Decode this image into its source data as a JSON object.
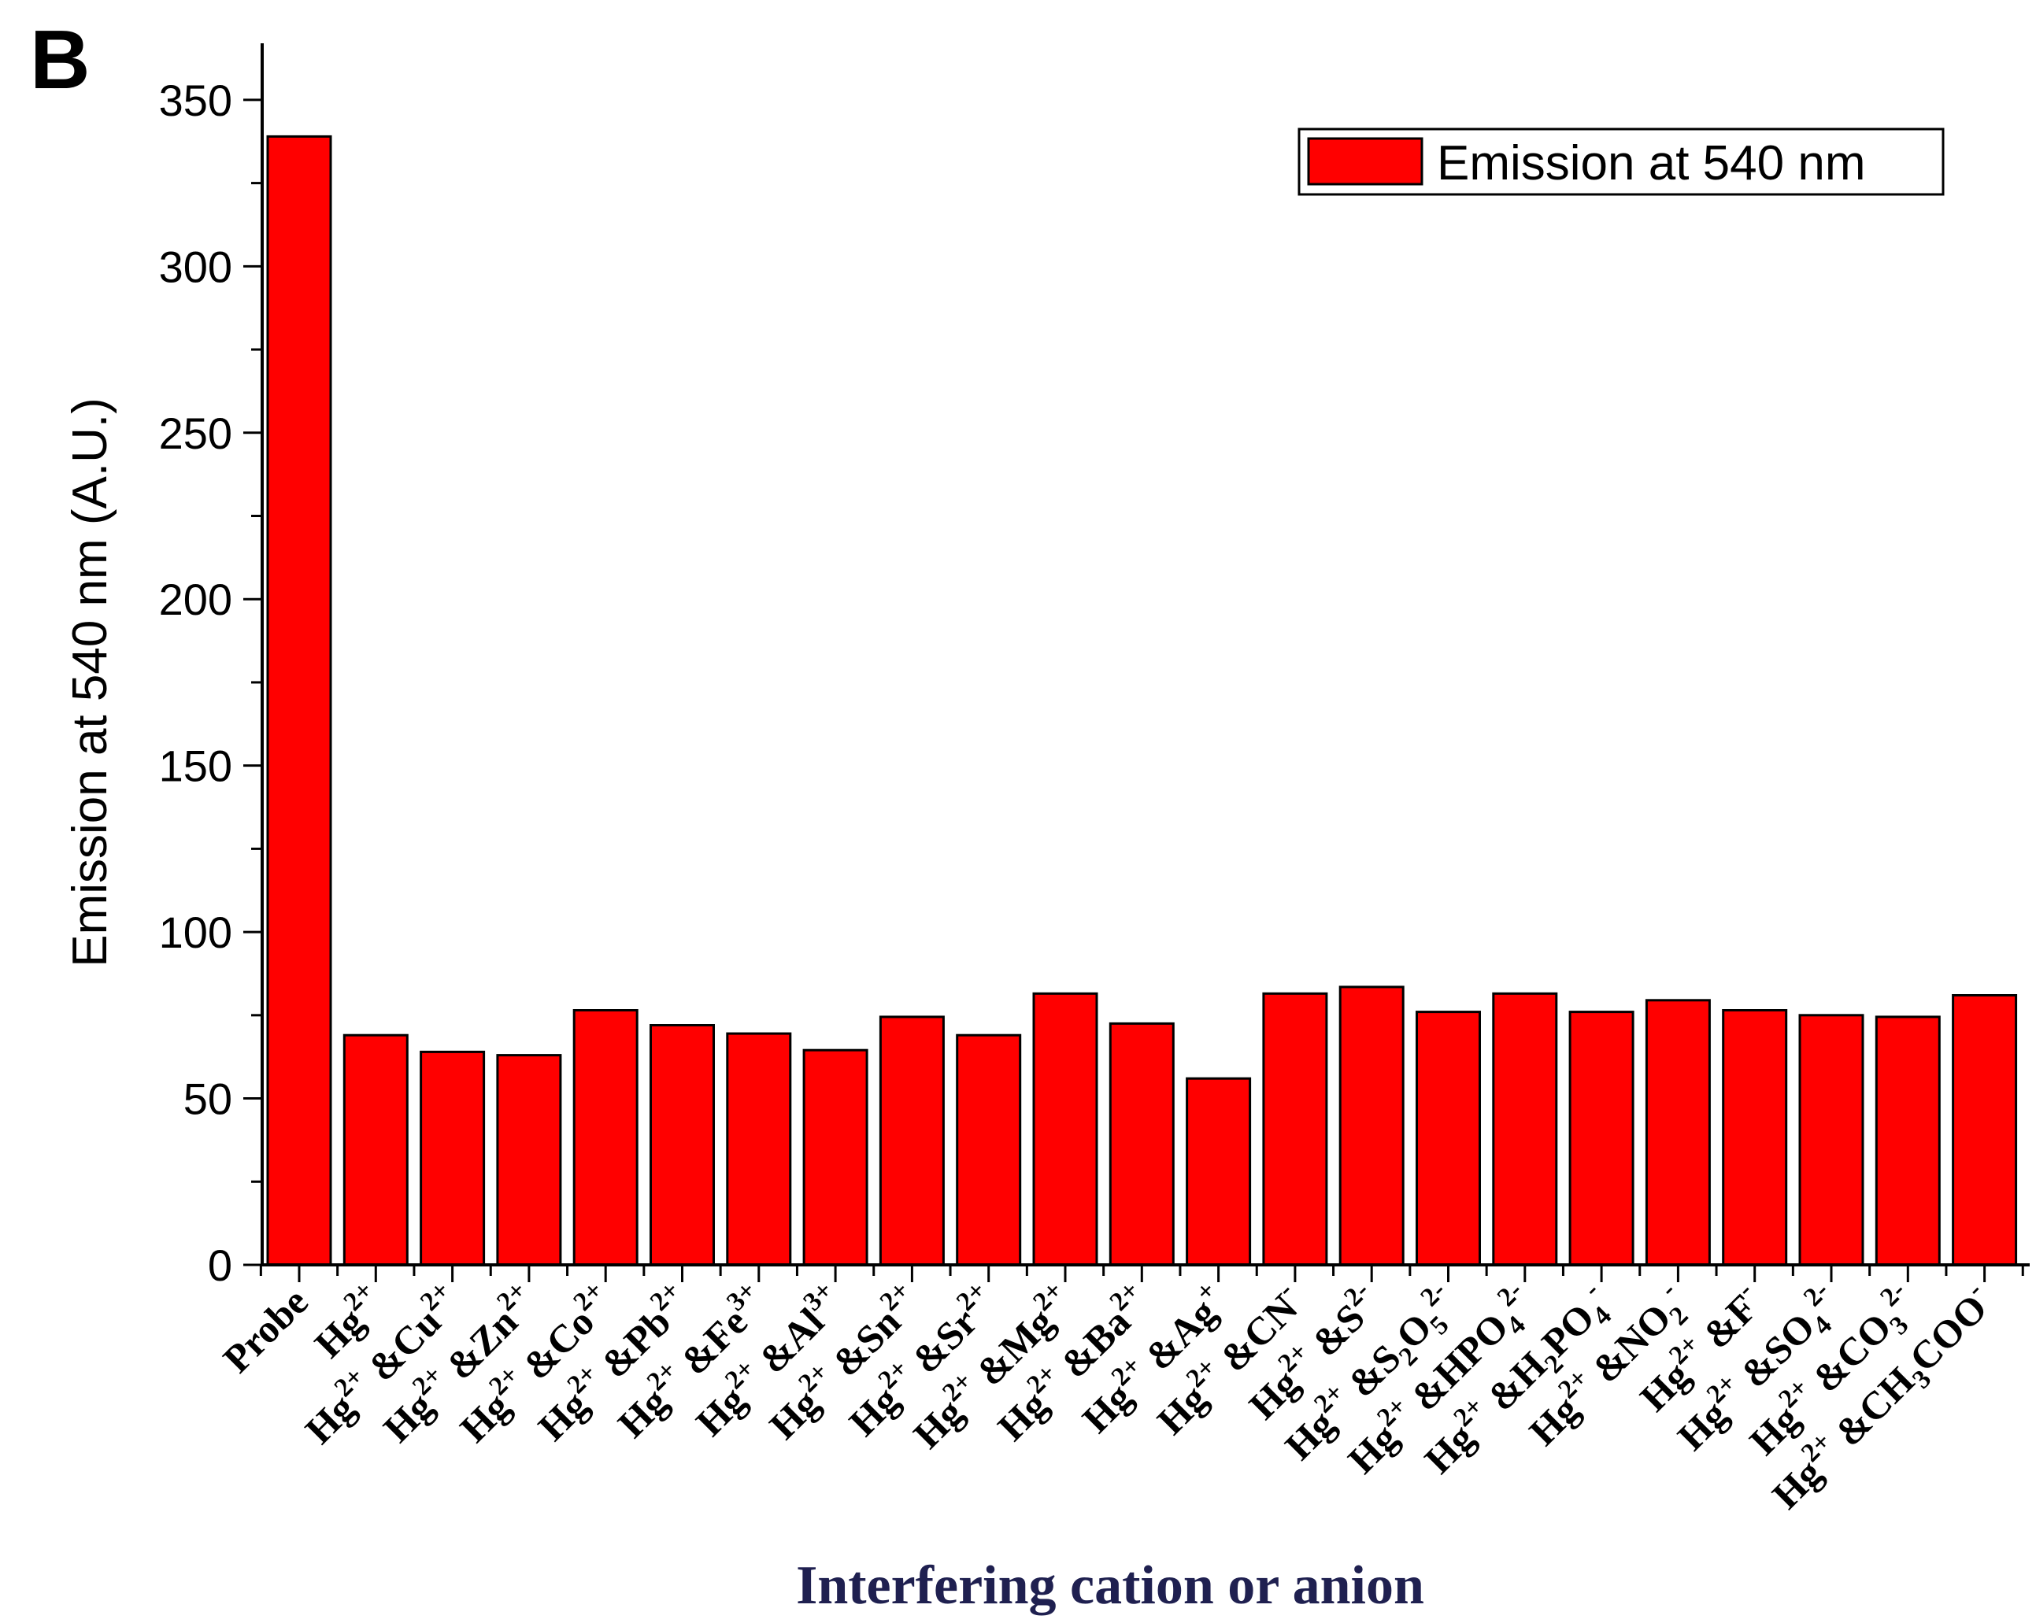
{
  "panel_label": "B",
  "chart_data": {
    "type": "bar",
    "title": "",
    "xlabel": "Interfering cation or anion",
    "ylabel": "Emission at 540 nm (A.U.)",
    "ylim": [
      0,
      367
    ],
    "yticks": [
      0,
      50,
      100,
      150,
      200,
      250,
      300,
      350
    ],
    "ytick_labels": [
      "0",
      "50",
      "100",
      "150",
      "200",
      "250",
      "300",
      "350"
    ],
    "legend": {
      "label": "Emission at 540 nm",
      "position": "top-right"
    },
    "grid": false,
    "bar_color": "#ff0000",
    "categories": [
      {
        "parts": [
          [
            "n",
            "Probe"
          ]
        ]
      },
      {
        "parts": [
          [
            "n",
            "Hg"
          ],
          [
            "sup",
            "2+"
          ]
        ]
      },
      {
        "parts": [
          [
            "n",
            "Hg"
          ],
          [
            "sup",
            "2+"
          ],
          [
            "n",
            " &Cu"
          ],
          [
            "sup",
            "2+"
          ]
        ]
      },
      {
        "parts": [
          [
            "n",
            "Hg"
          ],
          [
            "sup",
            "2+"
          ],
          [
            "n",
            " &Zn"
          ],
          [
            "sup",
            "2+"
          ]
        ]
      },
      {
        "parts": [
          [
            "n",
            "Hg"
          ],
          [
            "sup",
            "2+"
          ],
          [
            "n",
            " &Co"
          ],
          [
            "sup",
            "2+"
          ]
        ]
      },
      {
        "parts": [
          [
            "n",
            "Hg"
          ],
          [
            "sup",
            "2+"
          ],
          [
            "n",
            " &Pb"
          ],
          [
            "sup",
            "2+"
          ]
        ]
      },
      {
        "parts": [
          [
            "n",
            "Hg"
          ],
          [
            "sup",
            "2+"
          ],
          [
            "n",
            " &Fe"
          ],
          [
            "sup",
            "3+"
          ]
        ]
      },
      {
        "parts": [
          [
            "n",
            "Hg"
          ],
          [
            "sup",
            "2+"
          ],
          [
            "n",
            " &Al"
          ],
          [
            "sup",
            "3+"
          ]
        ]
      },
      {
        "parts": [
          [
            "n",
            "Hg"
          ],
          [
            "sup",
            "2+"
          ],
          [
            "n",
            " &Sn"
          ],
          [
            "sup",
            "2+"
          ]
        ]
      },
      {
        "parts": [
          [
            "n",
            "Hg"
          ],
          [
            "sup",
            "2+"
          ],
          [
            "n",
            " &Sr"
          ],
          [
            "sup",
            "2+"
          ]
        ]
      },
      {
        "parts": [
          [
            "n",
            "Hg"
          ],
          [
            "sup",
            "2+"
          ],
          [
            "n",
            " &Mg"
          ],
          [
            "sup",
            "2+"
          ]
        ]
      },
      {
        "parts": [
          [
            "n",
            "Hg"
          ],
          [
            "sup",
            "2+"
          ],
          [
            "n",
            " &Ba"
          ],
          [
            "sup",
            "2+"
          ]
        ]
      },
      {
        "parts": [
          [
            "n",
            "Hg"
          ],
          [
            "sup",
            "2+"
          ],
          [
            "n",
            " &Ag"
          ],
          [
            "sup",
            "+"
          ]
        ]
      },
      {
        "parts": [
          [
            "n",
            "Hg"
          ],
          [
            "sup",
            "2+"
          ],
          [
            "n",
            " &CN"
          ],
          [
            "sup",
            "-"
          ]
        ]
      },
      {
        "parts": [
          [
            "n",
            "Hg"
          ],
          [
            "sup",
            "2+"
          ],
          [
            "n",
            " &S"
          ],
          [
            "sup",
            "2-"
          ]
        ]
      },
      {
        "parts": [
          [
            "n",
            "Hg"
          ],
          [
            "sup",
            "2+"
          ],
          [
            "n",
            " &S"
          ],
          [
            "sub",
            "2"
          ],
          [
            "n",
            "O"
          ],
          [
            "sub",
            "5"
          ],
          [
            "sup",
            "2-"
          ]
        ]
      },
      {
        "parts": [
          [
            "n",
            "Hg"
          ],
          [
            "sup",
            "2+"
          ],
          [
            "n",
            " &HPO"
          ],
          [
            "sub",
            "4"
          ],
          [
            "sup",
            "2-"
          ]
        ]
      },
      {
        "parts": [
          [
            "n",
            "Hg"
          ],
          [
            "sup",
            "2+"
          ],
          [
            "n",
            " &H"
          ],
          [
            "sub",
            "2"
          ],
          [
            "n",
            "PO"
          ],
          [
            "sub",
            "4"
          ],
          [
            "sup",
            "-"
          ]
        ]
      },
      {
        "parts": [
          [
            "n",
            "Hg"
          ],
          [
            "sup",
            "2+"
          ],
          [
            "n",
            " &NO"
          ],
          [
            "sub",
            "2"
          ],
          [
            "sup",
            "-"
          ]
        ]
      },
      {
        "parts": [
          [
            "n",
            "Hg"
          ],
          [
            "sup",
            "2+"
          ],
          [
            "n",
            " &F"
          ],
          [
            "sup",
            "-"
          ]
        ]
      },
      {
        "parts": [
          [
            "n",
            "Hg"
          ],
          [
            "sup",
            "2+"
          ],
          [
            "n",
            " &SO"
          ],
          [
            "sub",
            "4"
          ],
          [
            "sup",
            "2-"
          ]
        ]
      },
      {
        "parts": [
          [
            "n",
            "Hg"
          ],
          [
            "sup",
            "2+"
          ],
          [
            "n",
            " &CO"
          ],
          [
            "sub",
            "3"
          ],
          [
            "sup",
            "2-"
          ]
        ]
      },
      {
        "parts": [
          [
            "n",
            "Hg"
          ],
          [
            "sup",
            "2+"
          ],
          [
            "n",
            " &CH"
          ],
          [
            "sub",
            "3"
          ],
          [
            "n",
            "COO"
          ],
          [
            "sup",
            "-"
          ]
        ]
      }
    ],
    "values": [
      339,
      69,
      64,
      63,
      76.5,
      72,
      69.5,
      64.5,
      74.5,
      69,
      81.5,
      72.5,
      56,
      81.5,
      83.5,
      76,
      81.5,
      76,
      79.5,
      76.5,
      75,
      74.5,
      81
    ]
  }
}
